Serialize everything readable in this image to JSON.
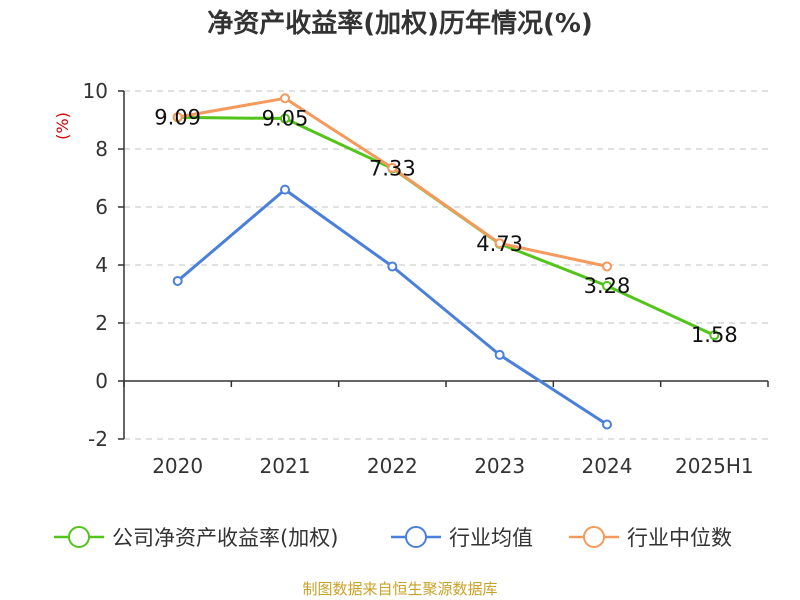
{
  "chart_data": {
    "type": "line",
    "title": "净资产收益率(加权)历年情况(%)",
    "ylabel": "(%)",
    "xlabel": "",
    "categories": [
      "2020",
      "2021",
      "2022",
      "2023",
      "2024",
      "2025H1"
    ],
    "ylim": [
      -2,
      10
    ],
    "yticks": [
      -2,
      0,
      2,
      4,
      6,
      8,
      10
    ],
    "grid": true,
    "legend_position": "bottom",
    "series": [
      {
        "name": "公司净资产收益率(加权)",
        "color": "#52c41a",
        "values": [
          9.09,
          9.05,
          7.33,
          4.73,
          3.28,
          1.58
        ],
        "labels": [
          "9.09",
          "9.05",
          "7.33",
          "4.73",
          "3.28",
          "1.58"
        ]
      },
      {
        "name": "行业均值",
        "color": "#4a7fdc",
        "values": [
          3.45,
          6.6,
          3.95,
          0.9,
          -1.5,
          null
        ]
      },
      {
        "name": "行业中位数",
        "color": "#f59a5c",
        "values": [
          9.1,
          9.75,
          7.35,
          4.75,
          3.95,
          null
        ]
      }
    ]
  },
  "source_text": "制图数据来自恒生聚源数据库"
}
